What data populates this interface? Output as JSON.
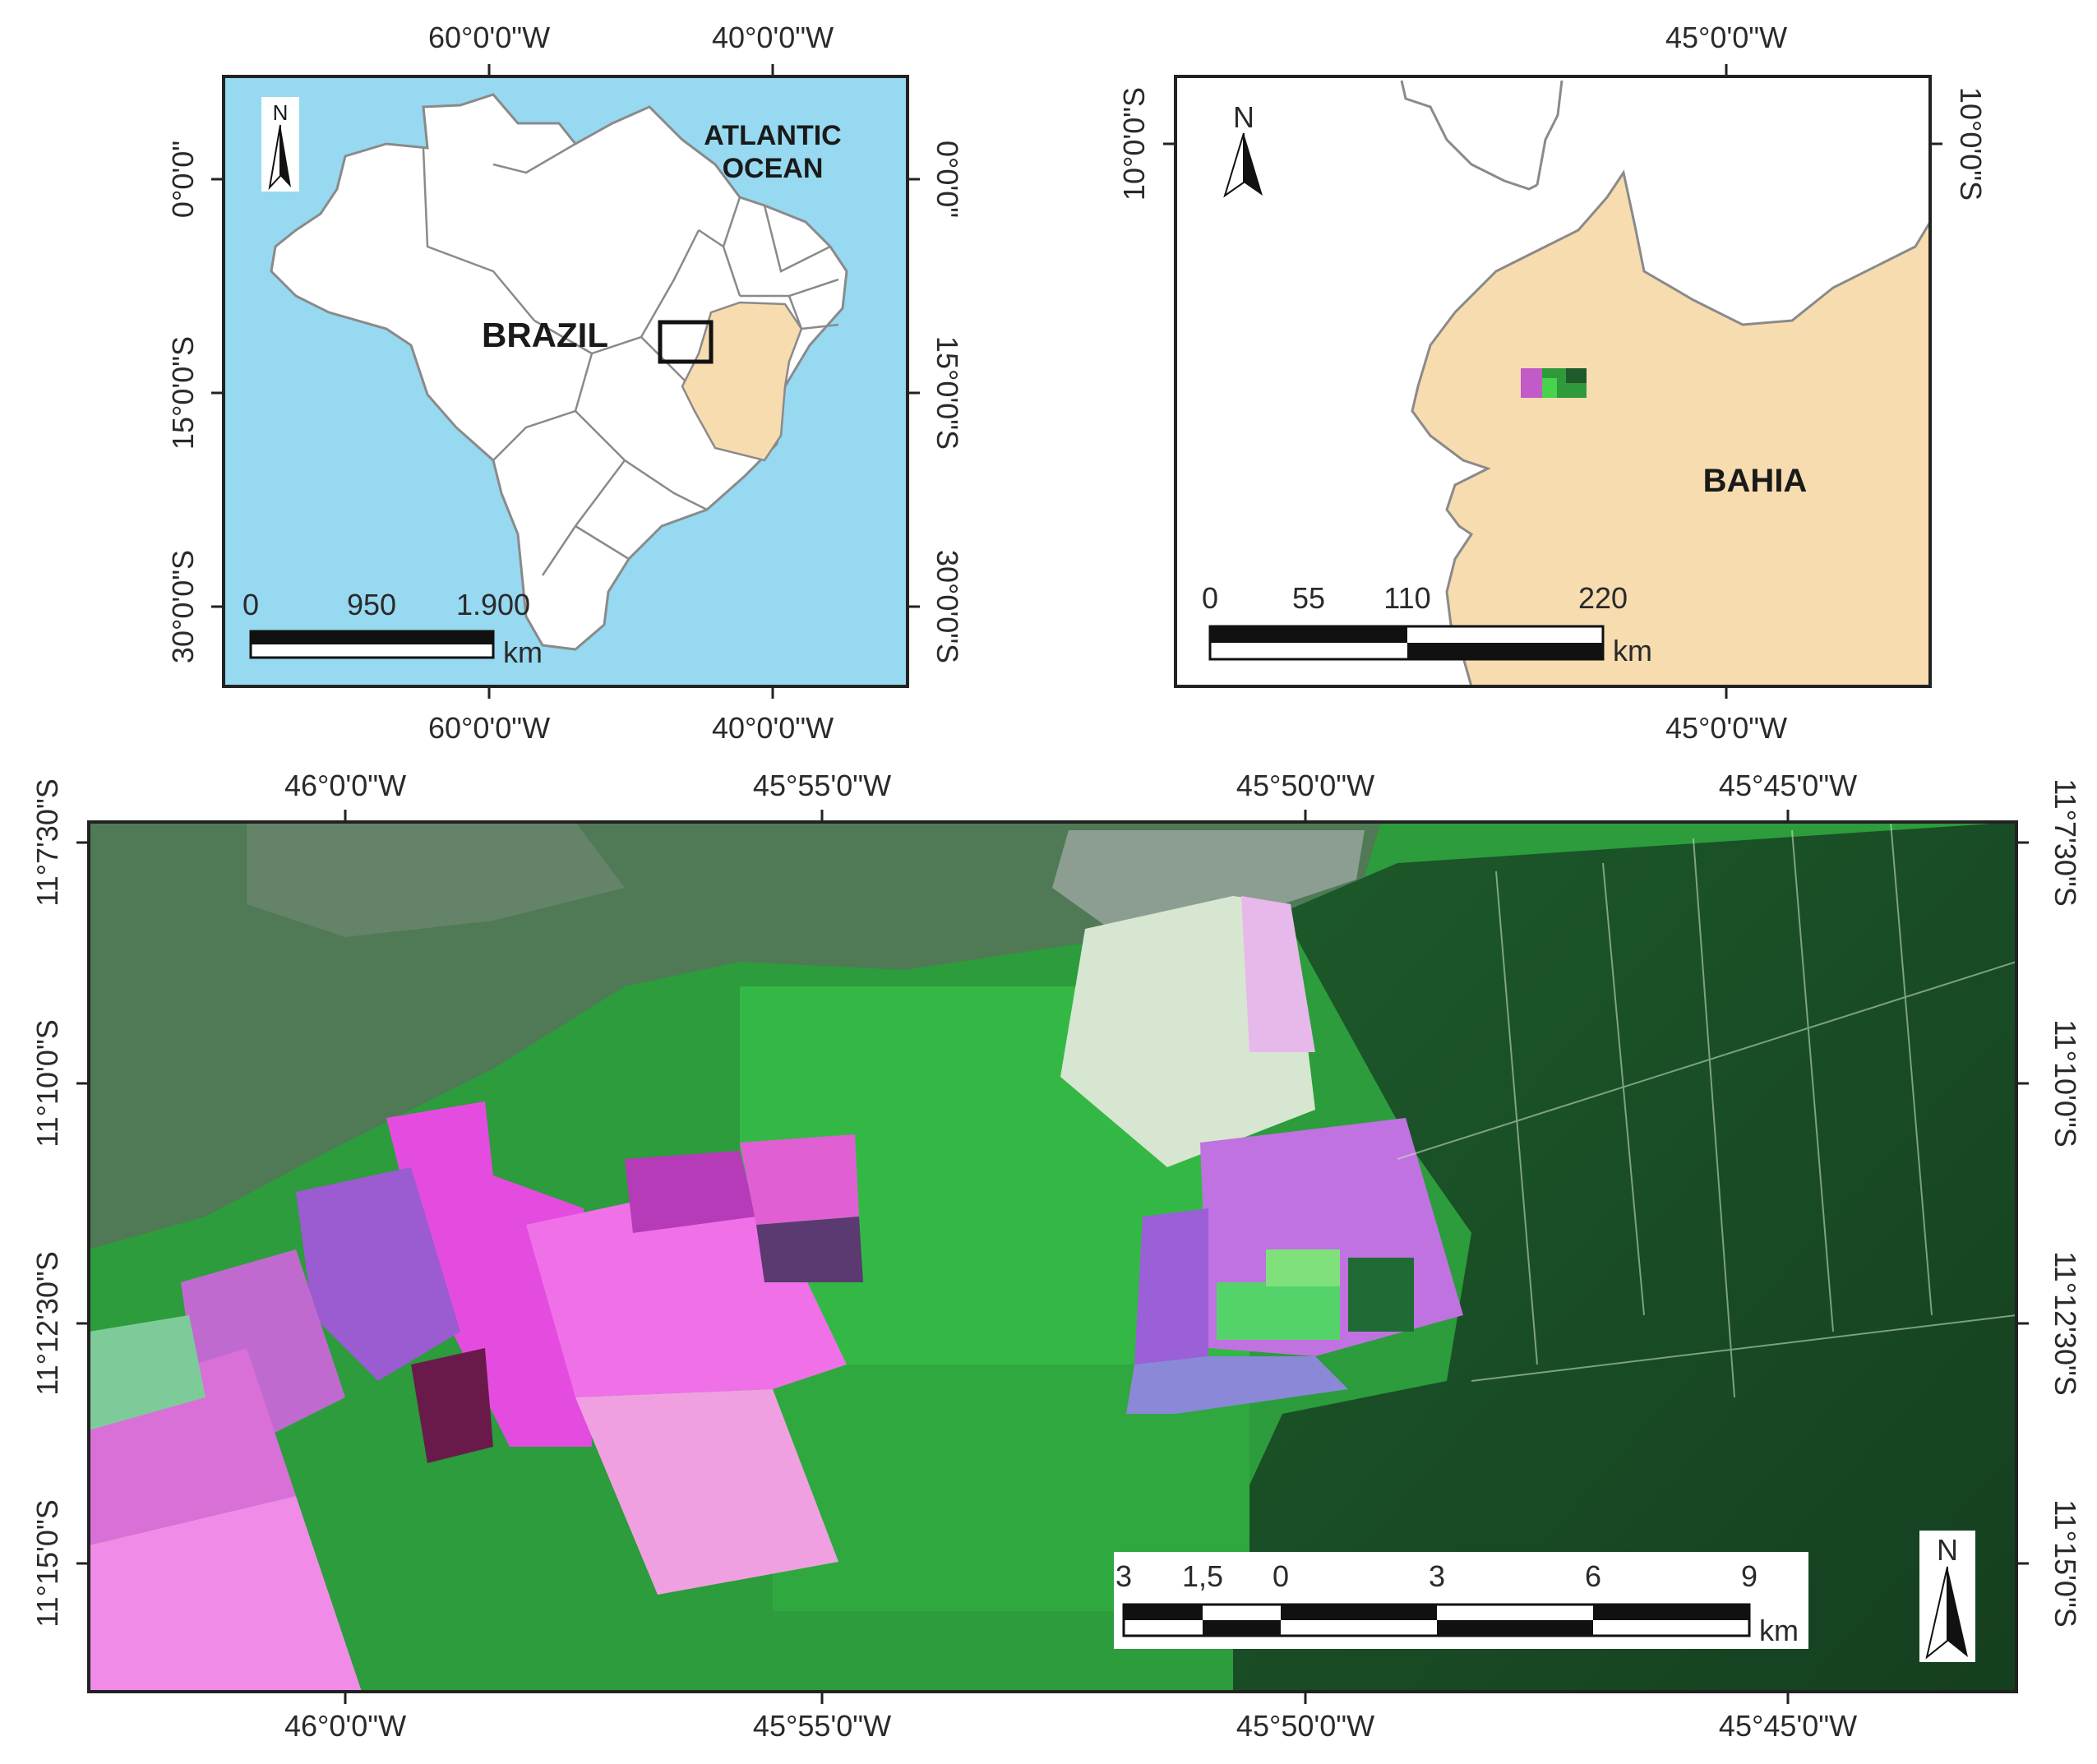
{
  "panel_a": {
    "top_ticks": [
      "60°0'0\"W",
      "40°0'0\"W"
    ],
    "bottom_ticks": [
      "60°0'0\"W",
      "40°0'0\"W"
    ],
    "left_ticks": [
      "0°0'0\"",
      "15°0'0\"S",
      "30°0'0\"S"
    ],
    "right_ticks": [
      "0°0'0\"",
      "15°0'0\"S",
      "30°0'0\"S"
    ],
    "north": "N",
    "ocean_line1": "ATLANTIC",
    "ocean_line2": "OCEAN",
    "country": "BRAZIL",
    "scale_labels": [
      "0",
      "950",
      "1.900"
    ],
    "scale_unit": "km",
    "colors": {
      "ocean": "#96d9f0",
      "land": "#ffffff",
      "highlight": "#f7dcb0"
    }
  },
  "panel_b": {
    "top_ticks": [
      "45°0'0\"W"
    ],
    "bottom_ticks": [
      "45°0'0\"W"
    ],
    "left_ticks": [
      "10°0'0\"S"
    ],
    "right_ticks": [
      "10°0'0\"S"
    ],
    "north": "N",
    "state": "BAHIA",
    "scale_labels": [
      "0",
      "55",
      "110",
      "220"
    ],
    "scale_unit": "km",
    "colors": {
      "state": "#f7dcb0"
    }
  },
  "panel_c": {
    "top_ticks": [
      "46°0'0\"W",
      "45°55'0\"W",
      "45°50'0\"W",
      "45°45'0\"W"
    ],
    "bottom_ticks": [
      "46°0'0\"W",
      "45°55'0\"W",
      "45°50'0\"W",
      "45°45'0\"W"
    ],
    "left_ticks": [
      "11°7'30\"S",
      "11°10'0\"S",
      "11°12'30\"S",
      "11°15'0\"S"
    ],
    "right_ticks": [
      "11°7'30\"S",
      "11°10'0\"S",
      "11°12'30\"S",
      "11°15'0\"S"
    ],
    "north": "N",
    "scale_labels": [
      "3",
      "1,5",
      "0",
      "3",
      "6",
      "9"
    ],
    "scale_unit": "km"
  }
}
